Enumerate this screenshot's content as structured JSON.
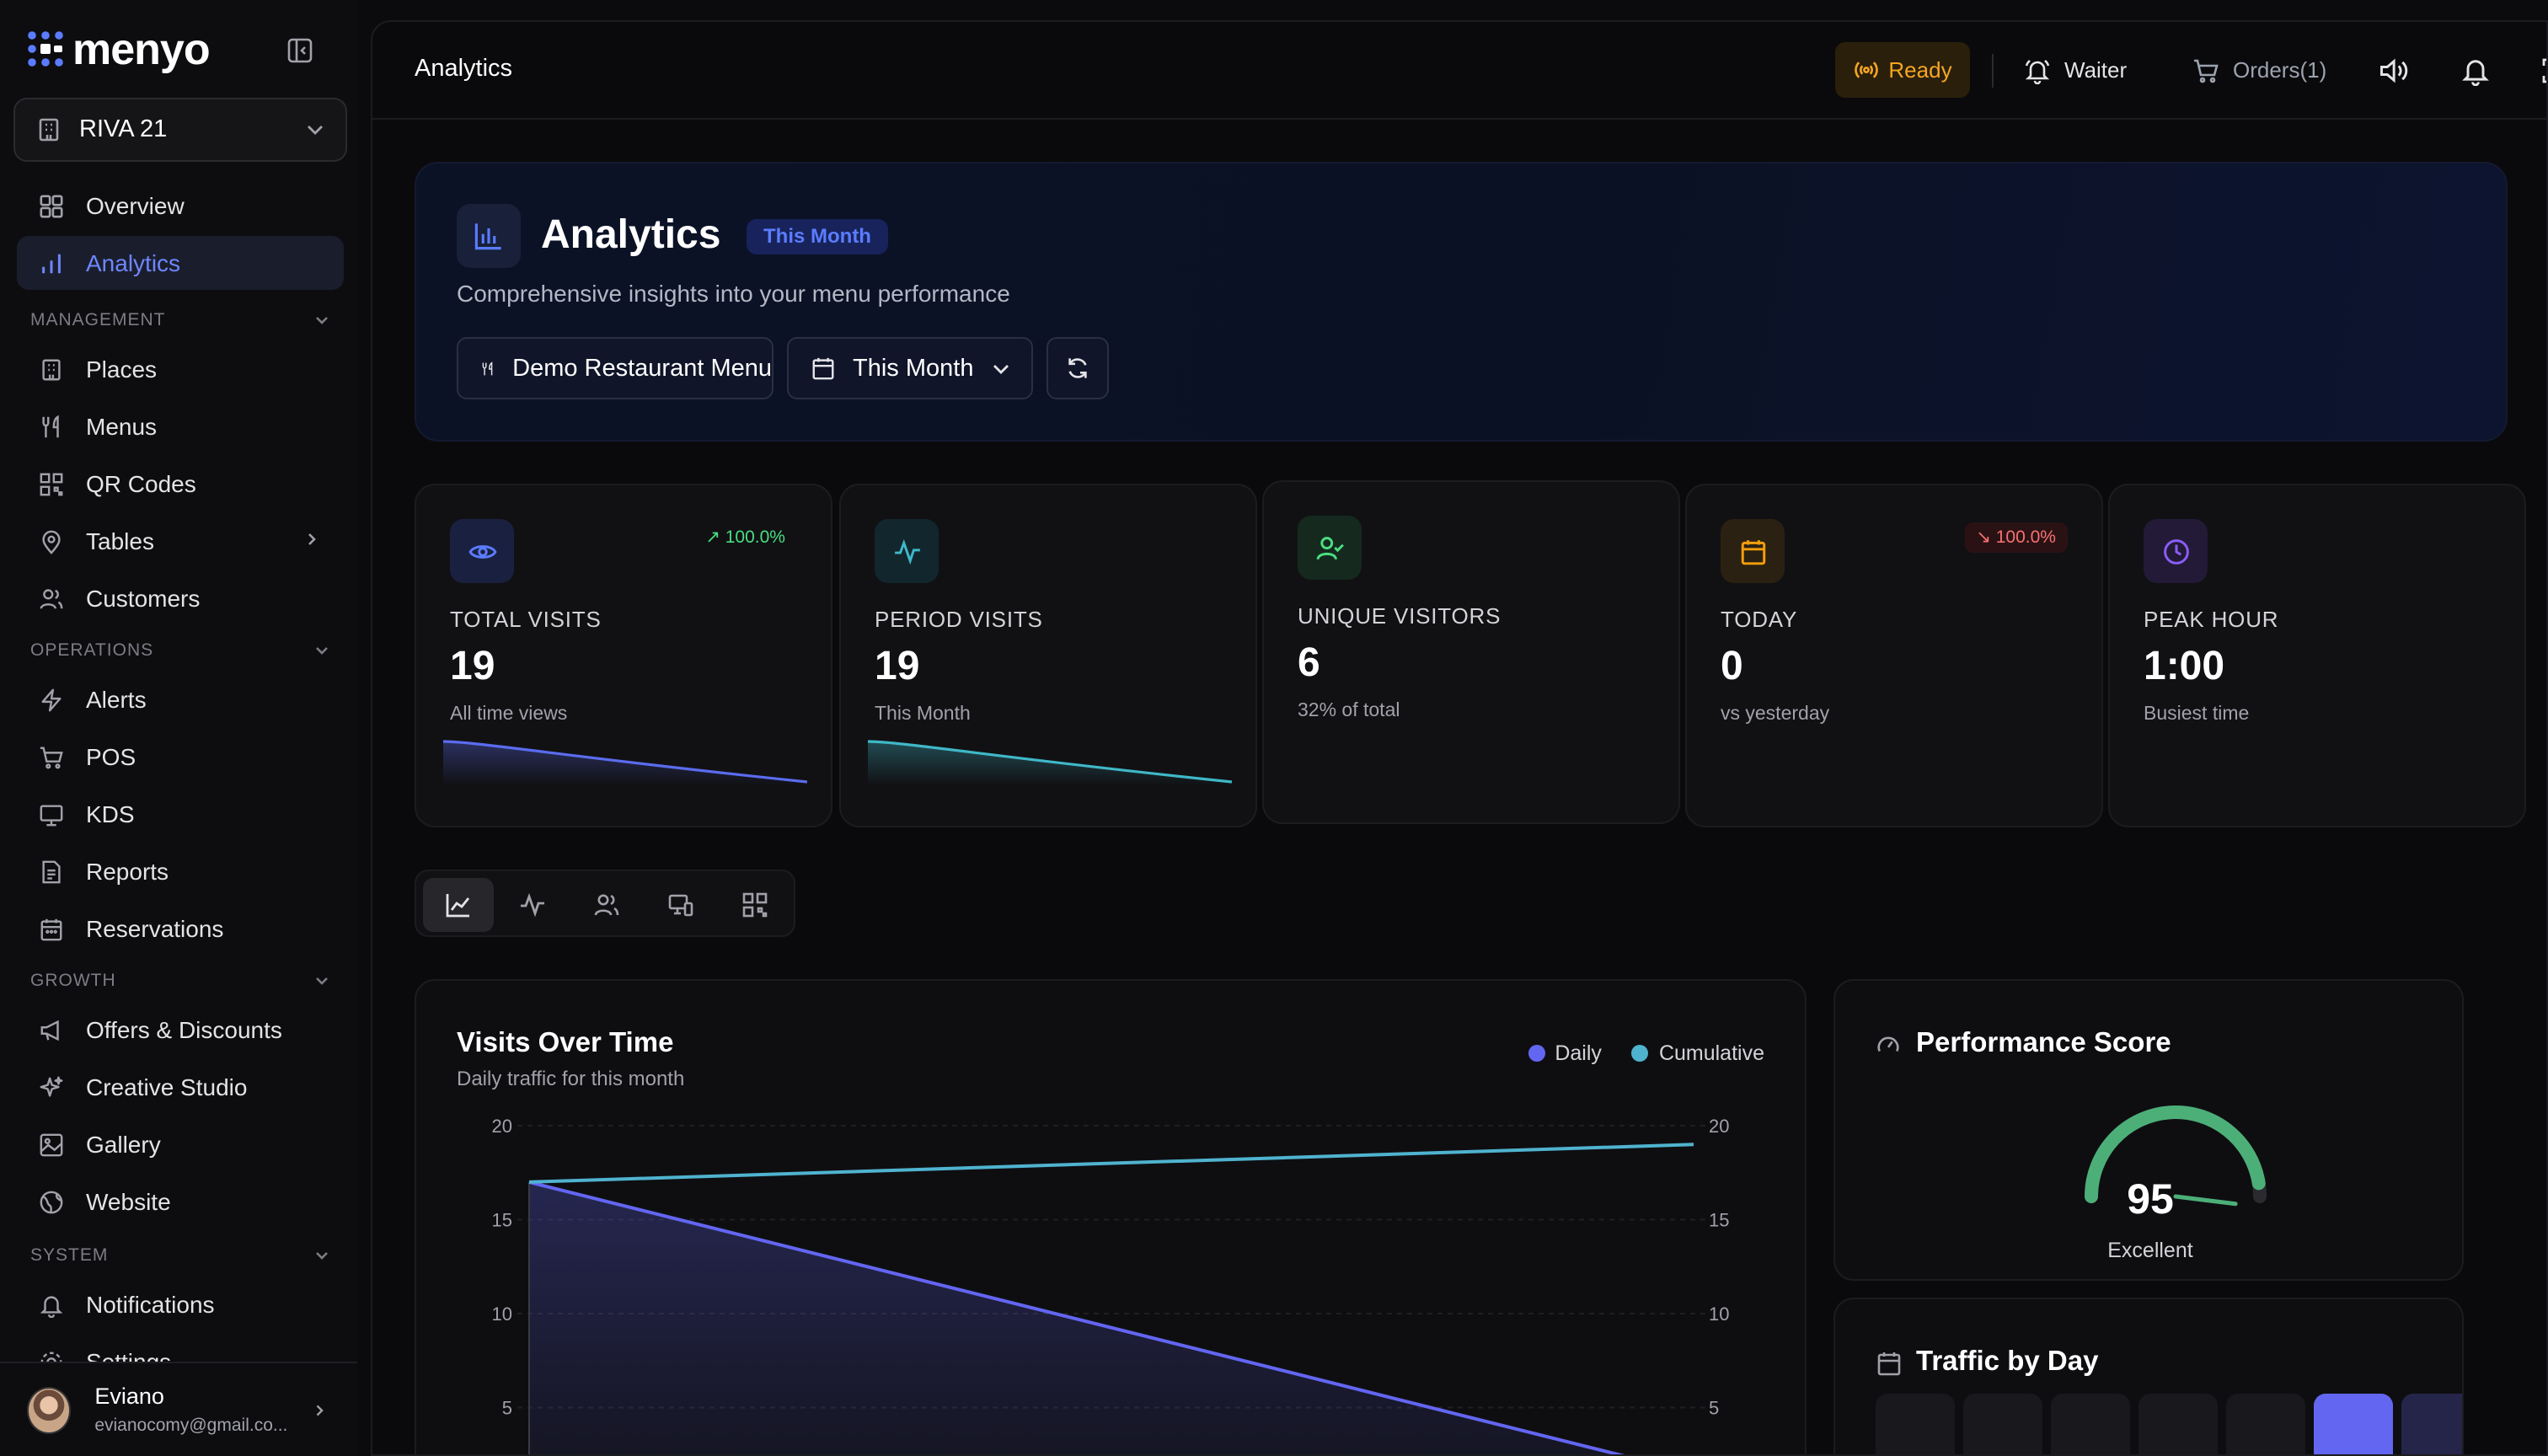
{
  "app": {
    "brand": "menyo"
  },
  "sidebar": {
    "place": "RIVA 21",
    "top_items": [
      {
        "label": "Overview"
      },
      {
        "label": "Analytics"
      }
    ],
    "sections": [
      {
        "title": "MANAGEMENT",
        "items": [
          {
            "label": "Places"
          },
          {
            "label": "Menus"
          },
          {
            "label": "QR Codes"
          },
          {
            "label": "Tables"
          },
          {
            "label": "Customers"
          }
        ]
      },
      {
        "title": "OPERATIONS",
        "items": [
          {
            "label": "Alerts"
          },
          {
            "label": "POS"
          },
          {
            "label": "KDS"
          },
          {
            "label": "Reports"
          },
          {
            "label": "Reservations"
          }
        ]
      },
      {
        "title": "GROWTH",
        "items": [
          {
            "label": "Offers & Discounts"
          },
          {
            "label": "Creative Studio"
          },
          {
            "label": "Gallery"
          },
          {
            "label": "Website"
          }
        ]
      },
      {
        "title": "SYSTEM",
        "items": [
          {
            "label": "Notifications"
          },
          {
            "label": "Settings"
          }
        ]
      }
    ],
    "user": {
      "name": "Eviano",
      "email": "evianocomy@gmail.co..."
    }
  },
  "topbar": {
    "title": "Analytics",
    "ready_label": "Ready",
    "waiter_label": "Waiter",
    "orders_label": "Orders(1)"
  },
  "hero": {
    "title": "Analytics",
    "badge": "This Month",
    "subtitle": "Comprehensive insights into your menu performance",
    "menu_select": "Demo Restaurant Menu",
    "period_select": "This Month"
  },
  "stats": [
    {
      "label": "TOTAL VISITS",
      "value": "19",
      "sub": "All time views",
      "trend": "100.0%",
      "trend_dir": "up",
      "color": "#5b6cf0"
    },
    {
      "label": "PERIOD VISITS",
      "value": "19",
      "sub": "This Month",
      "trend": "",
      "color": "#3fb8c8"
    },
    {
      "label": "UNIQUE VISITORS",
      "value": "6",
      "sub": "32% of total",
      "trend": "",
      "color": "#4ade80"
    },
    {
      "label": "TODAY",
      "value": "0",
      "sub": "vs yesterday",
      "trend": "100.0%",
      "trend_dir": "down",
      "color": "#f59e0b"
    },
    {
      "label": "PEAK HOUR",
      "value": "1:00",
      "sub": "Busiest time",
      "trend": "",
      "color": "#8b5cf6"
    }
  ],
  "visits_chart": {
    "title": "Visits Over Time",
    "subtitle": "Daily traffic for this month",
    "legend": [
      "Daily",
      "Cumulative"
    ]
  },
  "chart_data": {
    "type": "area",
    "ylim": [
      0,
      20
    ],
    "yticks": [
      "20",
      "15",
      "10",
      "5"
    ],
    "series": [
      {
        "name": "Daily",
        "color": "#6366f1",
        "points": [
          [
            0,
            17
          ],
          [
            1,
            1.5
          ]
        ]
      },
      {
        "name": "Cumulative",
        "color": "#4fb3cf",
        "points": [
          [
            0,
            17
          ],
          [
            1,
            19
          ]
        ]
      }
    ]
  },
  "performance": {
    "title": "Performance Score",
    "score": "95",
    "score_value": 95,
    "rating": "Excellent"
  },
  "traffic": {
    "title": "Traffic by Day",
    "highlight_index": 5
  }
}
